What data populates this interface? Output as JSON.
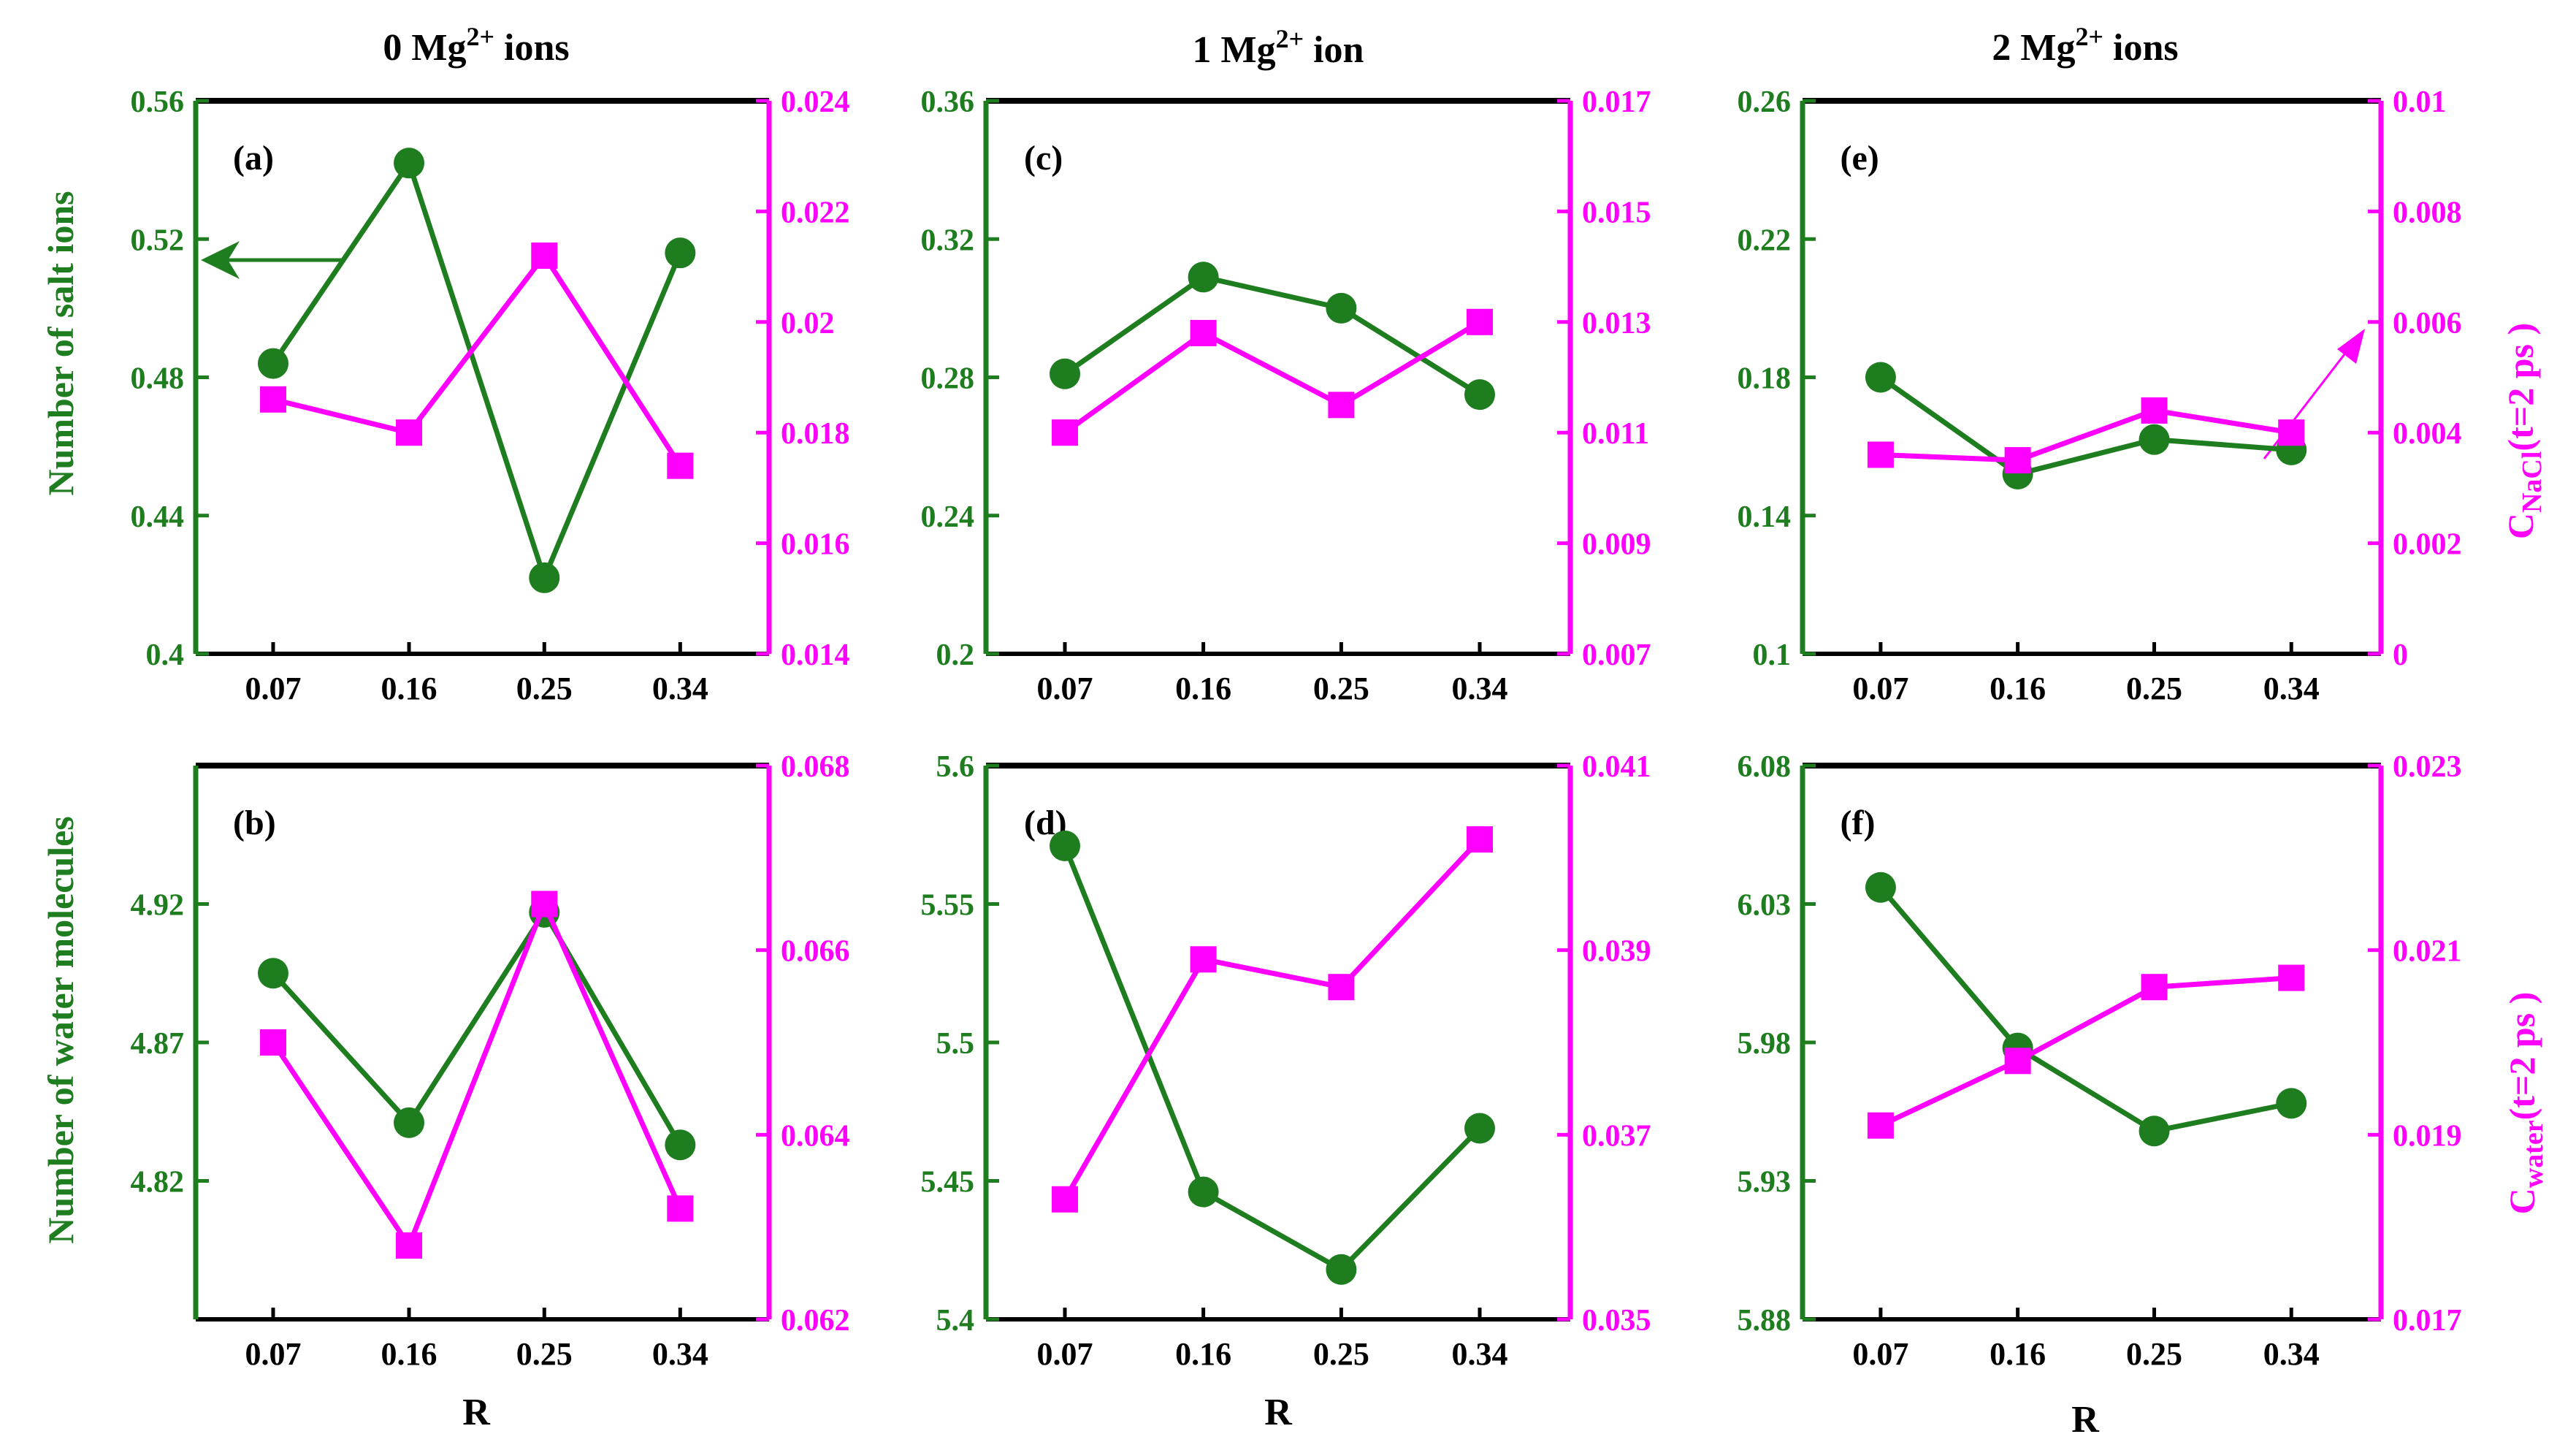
{
  "figure": {
    "x_axis_label": "R",
    "left_axis_label_top": "Number of salt ions",
    "left_axis_label_bottom": "Number of water molecules",
    "right_axis_label_top": {
      "main": "C",
      "sub": "NaCl",
      "tail": "(t=2 ps )"
    },
    "right_axis_label_bottom": {
      "main": "C",
      "sub": "water",
      "tail": "(t=2 ps )"
    },
    "column_titles": [
      {
        "pre": "0 Mg",
        "sup": "2+",
        "post": " ions"
      },
      {
        "pre": "1 Mg",
        "sup": "2+",
        "post": " ion"
      },
      {
        "pre": "2 Mg",
        "sup": "2+",
        "post": " ions"
      }
    ]
  },
  "colors": {
    "green": "#1e7d1e",
    "magenta": "#ff00ff",
    "axis": "#000000"
  },
  "chart_data": [
    {
      "panel": "(a)",
      "type": "line",
      "categories": [
        "0.07",
        "0.16",
        "0.25",
        "0.34"
      ],
      "left_ticks": [
        "0.4",
        "0.44",
        "0.48",
        "0.52",
        "0.56"
      ],
      "ylim": [
        0.4,
        0.56
      ],
      "right_ticks": [
        "0.014",
        "0.016",
        "0.018",
        "0.02",
        "0.022",
        "0.024"
      ],
      "y2lim": [
        0.014,
        0.024
      ],
      "series": [
        {
          "name": "Number of salt ions",
          "axis": "left",
          "marker": "circle",
          "color": "green",
          "values": [
            0.484,
            0.542,
            0.422,
            0.516
          ]
        },
        {
          "name": "C_NaCl(t=2 ps)",
          "axis": "right",
          "marker": "square",
          "color": "magenta",
          "values": [
            0.0186,
            0.018,
            0.0212,
            0.0174
          ]
        }
      ]
    },
    {
      "panel": "(b)",
      "type": "line",
      "categories": [
        "0.07",
        "0.16",
        "0.25",
        "0.34"
      ],
      "left_ticks": [
        "4.82",
        "4.87",
        "4.92"
      ],
      "ylim": [
        4.77,
        4.97
      ],
      "right_ticks": [
        "0.062",
        "0.064",
        "0.066",
        "0.068"
      ],
      "y2lim": [
        0.062,
        0.068
      ],
      "series": [
        {
          "name": "Number of water molecules",
          "axis": "left",
          "marker": "circle",
          "color": "green",
          "values": [
            4.895,
            4.841,
            4.917,
            4.833
          ]
        },
        {
          "name": "C_water(t=2 ps)",
          "axis": "right",
          "marker": "square",
          "color": "magenta",
          "values": [
            0.065,
            0.0628,
            0.0665,
            0.0632
          ]
        }
      ]
    },
    {
      "panel": "(c)",
      "type": "line",
      "categories": [
        "0.07",
        "0.16",
        "0.25",
        "0.34"
      ],
      "left_ticks": [
        "0.2",
        "0.24",
        "0.28",
        "0.32",
        "0.36"
      ],
      "ylim": [
        0.2,
        0.36
      ],
      "right_ticks": [
        "0.007",
        "0.009",
        "0.011",
        "0.013",
        "0.015",
        "0.017"
      ],
      "y2lim": [
        0.007,
        0.017
      ],
      "series": [
        {
          "name": "Number of salt ions",
          "axis": "left",
          "marker": "circle",
          "color": "green",
          "values": [
            0.281,
            0.309,
            0.3,
            0.275
          ]
        },
        {
          "name": "C_NaCl(t=2 ps)",
          "axis": "right",
          "marker": "square",
          "color": "magenta",
          "values": [
            0.011,
            0.0128,
            0.0115,
            0.013
          ]
        }
      ]
    },
    {
      "panel": "(d)",
      "type": "line",
      "categories": [
        "0.07",
        "0.16",
        "0.25",
        "0.34"
      ],
      "left_ticks": [
        "5.4",
        "5.45",
        "5.5",
        "5.55",
        "5.6"
      ],
      "ylim": [
        5.4,
        5.6
      ],
      "right_ticks": [
        "0.035",
        "0.037",
        "0.039",
        "0.041"
      ],
      "y2lim": [
        0.035,
        0.041
      ],
      "series": [
        {
          "name": "Number of water molecules",
          "axis": "left",
          "marker": "circle",
          "color": "green",
          "values": [
            5.571,
            5.446,
            5.418,
            5.469
          ]
        },
        {
          "name": "C_water(t=2 ps)",
          "axis": "right",
          "marker": "square",
          "color": "magenta",
          "values": [
            0.0363,
            0.0389,
            0.0386,
            0.0402
          ]
        }
      ]
    },
    {
      "panel": "(e)",
      "type": "line",
      "categories": [
        "0.07",
        "0.16",
        "0.25",
        "0.34"
      ],
      "left_ticks": [
        "0.1",
        "0.14",
        "0.18",
        "0.22",
        "0.26"
      ],
      "ylim": [
        0.1,
        0.26
      ],
      "right_ticks": [
        "0",
        "0.002",
        "0.004",
        "0.006",
        "0.008",
        "0.01"
      ],
      "y2lim": [
        0,
        0.01
      ],
      "series": [
        {
          "name": "Number of salt ions",
          "axis": "left",
          "marker": "circle",
          "color": "green",
          "values": [
            0.18,
            0.152,
            0.162,
            0.159
          ]
        },
        {
          "name": "C_NaCl(t=2 ps)",
          "axis": "right",
          "marker": "square",
          "color": "magenta",
          "values": [
            0.0036,
            0.0035,
            0.0044,
            0.004
          ]
        }
      ]
    },
    {
      "panel": "(f)",
      "type": "line",
      "categories": [
        "0.07",
        "0.16",
        "0.25",
        "0.34"
      ],
      "left_ticks": [
        "5.88",
        "5.93",
        "5.98",
        "6.03",
        "6.08"
      ],
      "ylim": [
        5.88,
        6.08
      ],
      "right_ticks": [
        "0.017",
        "0.019",
        "0.021",
        "0.023"
      ],
      "y2lim": [
        0.017,
        0.023
      ],
      "series": [
        {
          "name": "Number of water molecules",
          "axis": "left",
          "marker": "circle",
          "color": "green",
          "values": [
            6.036,
            5.978,
            5.948,
            5.958
          ]
        },
        {
          "name": "C_water(t=2 ps)",
          "axis": "right",
          "marker": "square",
          "color": "magenta",
          "values": [
            0.0191,
            0.0198,
            0.0206,
            0.0207
          ]
        }
      ]
    }
  ]
}
